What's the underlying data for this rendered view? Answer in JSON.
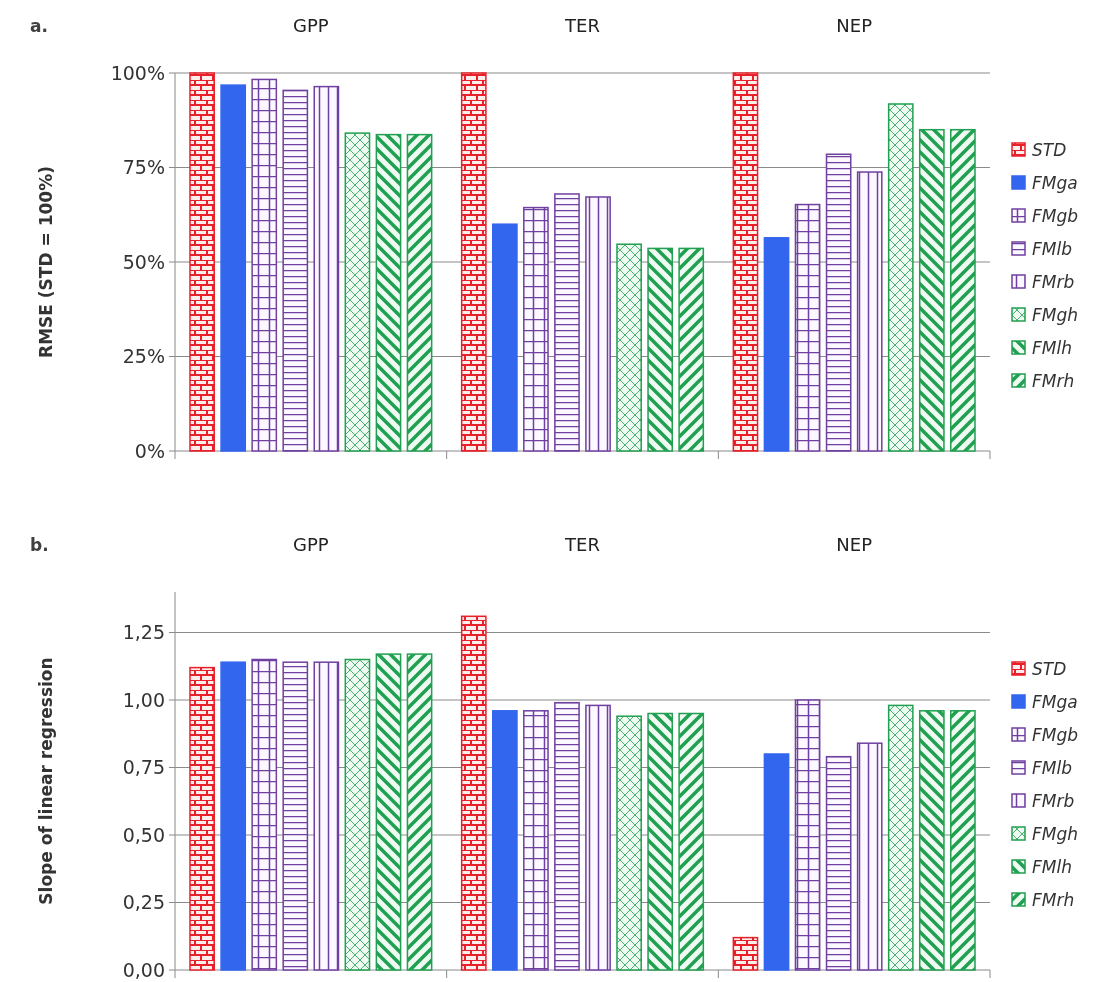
{
  "chart_data": [
    {
      "type": "bar",
      "title": "a.",
      "ylabel": "RMSE (STD = 100%)",
      "categories": [
        "GPP",
        "TER",
        "NEP"
      ],
      "ylim": [
        0,
        100
      ],
      "yticks": [
        {
          "value": 0,
          "label": "0%"
        },
        {
          "value": 25,
          "label": "25%"
        },
        {
          "value": 50,
          "label": "50%"
        },
        {
          "value": 75,
          "label": "75%"
        },
        {
          "value": 100,
          "label": "100%"
        }
      ],
      "grid": "y",
      "legend": "right",
      "series": [
        {
          "name": "STD",
          "color": "#e8202a",
          "values": [
            100,
            100,
            100
          ]
        },
        {
          "name": "FMga",
          "color": "#3366ee",
          "values": [
            96.8,
            60.0,
            56.4
          ]
        },
        {
          "name": "FMgb",
          "color": "#7040a0",
          "values": [
            98.3,
            64.4,
            65.2
          ]
        },
        {
          "name": "FMlb",
          "color": "#7040a0",
          "values": [
            95.4,
            68.0,
            78.5
          ]
        },
        {
          "name": "FMrb",
          "color": "#7040a0",
          "values": [
            96.4,
            67.2,
            73.8
          ]
        },
        {
          "name": "FMgh",
          "color": "#20a050",
          "values": [
            84.1,
            54.7,
            91.8
          ]
        },
        {
          "name": "FMlh",
          "color": "#20a050",
          "values": [
            83.7,
            53.6,
            85.0
          ]
        },
        {
          "name": "FMrh",
          "color": "#20a050",
          "values": [
            83.7,
            53.6,
            85.0
          ]
        }
      ]
    },
    {
      "type": "bar",
      "title": "b.",
      "ylabel": "Slope of linear regression",
      "categories": [
        "GPP",
        "TER",
        "NEP"
      ],
      "ylim": [
        0,
        1.4
      ],
      "yticks": [
        {
          "value": 0,
          "label": "0,00"
        },
        {
          "value": 0.25,
          "label": "0,25"
        },
        {
          "value": 0.5,
          "label": "0,50"
        },
        {
          "value": 0.75,
          "label": "0,75"
        },
        {
          "value": 1,
          "label": "1,00"
        },
        {
          "value": 1.25,
          "label": "1,25"
        }
      ],
      "grid": "y",
      "legend": "right",
      "series": [
        {
          "name": "STD",
          "color": "#e8202a",
          "values": [
            1.12,
            1.31,
            0.12
          ]
        },
        {
          "name": "FMga",
          "color": "#3366ee",
          "values": [
            1.14,
            0.96,
            0.8
          ]
        },
        {
          "name": "FMgb",
          "color": "#7040a0",
          "values": [
            1.15,
            0.96,
            1.0
          ]
        },
        {
          "name": "FMlb",
          "color": "#7040a0",
          "values": [
            1.14,
            0.99,
            0.79
          ]
        },
        {
          "name": "FMrb",
          "color": "#7040a0",
          "values": [
            1.14,
            0.98,
            0.84
          ]
        },
        {
          "name": "FMgh",
          "color": "#20a050",
          "values": [
            1.15,
            0.94,
            0.98
          ]
        },
        {
          "name": "FMlh",
          "color": "#20a050",
          "values": [
            1.17,
            0.95,
            0.96
          ]
        },
        {
          "name": "FMrh",
          "color": "#20a050",
          "values": [
            1.17,
            0.95,
            0.96
          ]
        }
      ]
    }
  ]
}
